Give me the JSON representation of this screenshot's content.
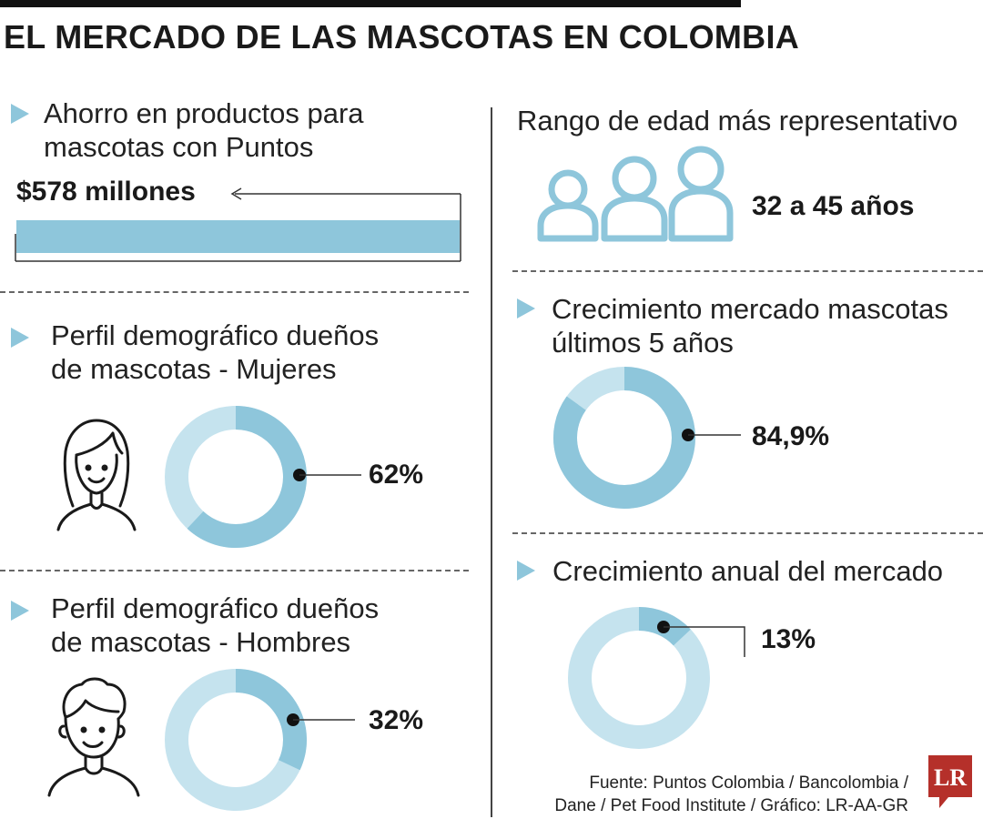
{
  "title": "EL MERCADO DE LAS MASCOTAS EN COLOMBIA",
  "colors": {
    "accent": "#8ec6db",
    "light": "#c5e3ee",
    "text": "#1a1a1a",
    "logo": "#b5302a"
  },
  "icons": [
    "triangle-bullet-icon",
    "people-icon",
    "woman-icon",
    "man-icon",
    "lr-logo-icon"
  ],
  "ahorro": {
    "heading_line1": "Ahorro en productos para",
    "heading_line2": "mascotas con Puntos",
    "value_label": "$578 millones"
  },
  "mujeres": {
    "heading_line1": "Perfil demográfico dueños",
    "heading_line2": "de mascotas - Mujeres",
    "value_label": "62%"
  },
  "hombres": {
    "heading_line1": "Perfil demográfico dueños",
    "heading_line2": "de mascotas - Hombres",
    "value_label": "32%"
  },
  "edad": {
    "heading": "Rango de edad más representativo",
    "value_label": "32 a 45 años"
  },
  "crecimiento5": {
    "heading_line1": "Crecimiento mercado mascotas",
    "heading_line2": "últimos 5 años",
    "value_label": "84,9%"
  },
  "crecimiento_anual": {
    "heading": "Crecimiento anual del mercado",
    "value_label": "13%"
  },
  "source": {
    "line1": "Fuente: Puntos Colombia / Bancolombia /",
    "line2": "Dane / Pet Food Institute / Gráfico: LR-AA-GR"
  },
  "logo_text": "LR",
  "chart_data": [
    {
      "type": "bar",
      "categories": [
        "Ahorro en productos para mascotas con Puntos"
      ],
      "values": [
        578
      ],
      "unit": "millones",
      "data_label": "$578 millones"
    },
    {
      "type": "pie",
      "categories": [
        "Mujeres"
      ],
      "values": [
        62
      ],
      "unit": "%",
      "data_label": "62%"
    },
    {
      "type": "pie",
      "categories": [
        "Hombres"
      ],
      "values": [
        32
      ],
      "unit": "%",
      "data_label": "32%"
    },
    {
      "type": "pie",
      "categories": [
        "Crecimiento mercado mascotas últimos 5 años"
      ],
      "values": [
        84.9
      ],
      "unit": "%",
      "data_label": "84,9%"
    },
    {
      "type": "pie",
      "categories": [
        "Crecimiento anual del mercado"
      ],
      "values": [
        13
      ],
      "unit": "%",
      "data_label": "13%"
    }
  ]
}
